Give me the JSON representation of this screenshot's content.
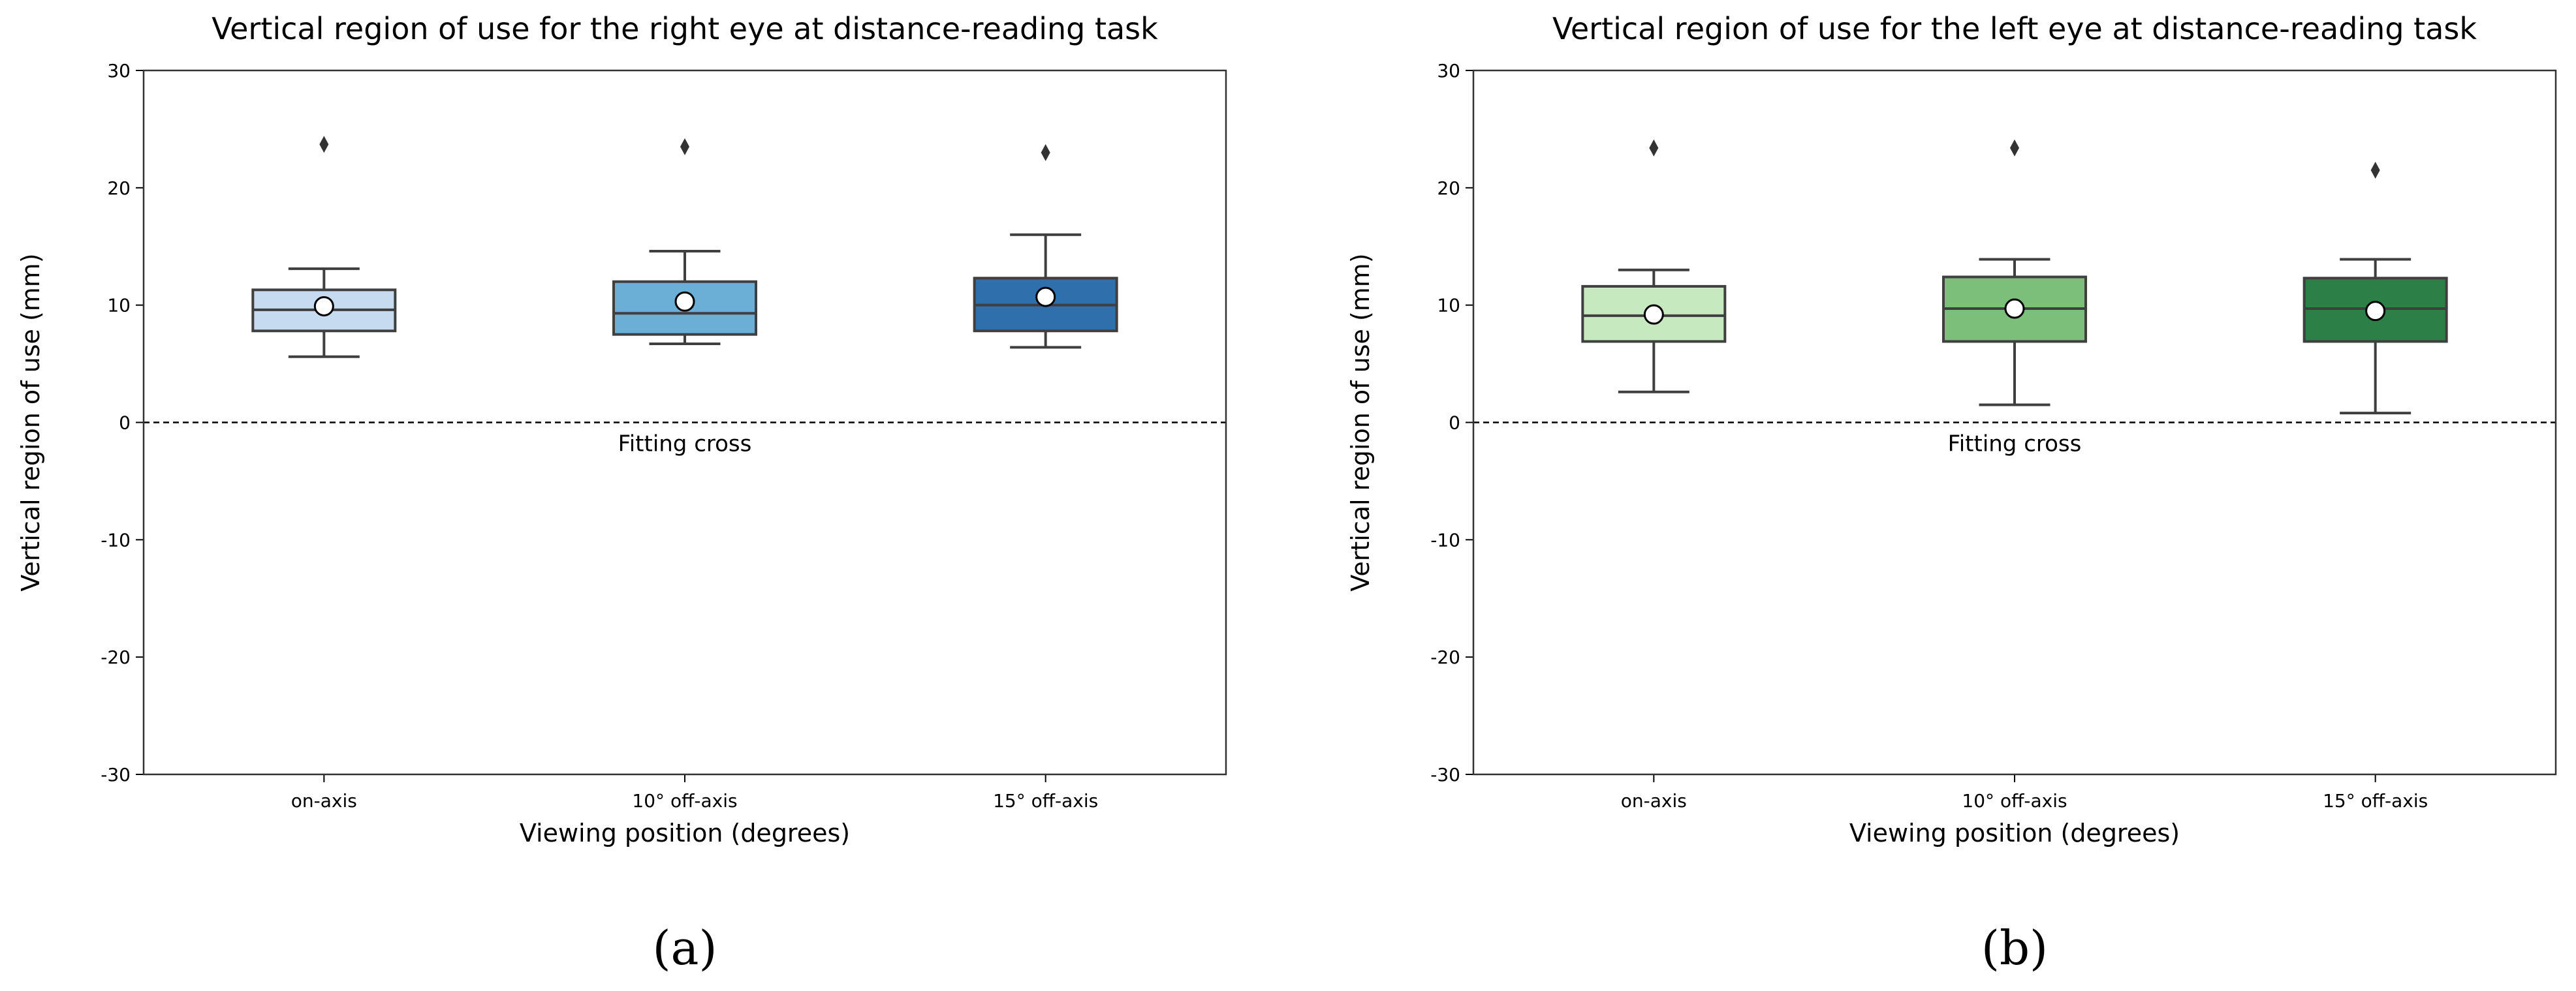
{
  "chart_data": [
    {
      "type": "box",
      "panel_label": "(a)",
      "title": "Vertical region of use for the right eye at distance-reading task",
      "xlabel": "Viewing position (degrees)",
      "ylabel": "Vertical region of use (mm)",
      "ylim": [
        -30,
        30
      ],
      "yticks": [
        30,
        20,
        10,
        0,
        -10,
        -20,
        -30
      ],
      "categories": [
        "on-axis",
        "10° off-axis",
        "15° off-axis"
      ],
      "colors": [
        "#c6dbef",
        "#6baed6",
        "#2e6fac"
      ],
      "boxes": [
        {
          "category": "on-axis",
          "whisker_low": 5.6,
          "q1": 7.8,
          "median": 9.6,
          "q3": 11.3,
          "whisker_high": 13.1,
          "mean": 9.9,
          "outliers": [
            23.7
          ]
        },
        {
          "category": "10° off-axis",
          "whisker_low": 6.7,
          "q1": 7.5,
          "median": 9.3,
          "q3": 12.0,
          "whisker_high": 14.6,
          "mean": 10.3,
          "outliers": [
            23.5
          ]
        },
        {
          "category": "15° off-axis",
          "whisker_low": 6.4,
          "q1": 7.8,
          "median": 10.0,
          "q3": 12.3,
          "whisker_high": 16.0,
          "mean": 10.7,
          "outliers": [
            23.0
          ]
        }
      ],
      "reference_line": {
        "y": 0,
        "label": "Fitting cross"
      }
    },
    {
      "type": "box",
      "panel_label": "(b)",
      "title": "Vertical region of use for the left eye at distance-reading task",
      "xlabel": "Viewing position (degrees)",
      "ylabel": "Vertical region of use (mm)",
      "ylim": [
        -30,
        30
      ],
      "yticks": [
        30,
        20,
        10,
        0,
        -10,
        -20,
        -30
      ],
      "categories": [
        "on-axis",
        "10° off-axis",
        "15° off-axis"
      ],
      "colors": [
        "#c7e9c0",
        "#7cbf7b",
        "#2c7f46"
      ],
      "boxes": [
        {
          "category": "on-axis",
          "whisker_low": 2.6,
          "q1": 6.9,
          "median": 9.1,
          "q3": 11.6,
          "whisker_high": 13.0,
          "mean": 9.2,
          "outliers": [
            23.4
          ]
        },
        {
          "category": "10° off-axis",
          "whisker_low": 1.5,
          "q1": 6.9,
          "median": 9.7,
          "q3": 12.4,
          "whisker_high": 13.9,
          "mean": 9.7,
          "outliers": [
            23.4
          ]
        },
        {
          "category": "15° off-axis",
          "whisker_low": 0.8,
          "q1": 6.9,
          "median": 9.7,
          "q3": 12.3,
          "whisker_high": 13.9,
          "mean": 9.5,
          "outliers": [
            21.5
          ]
        }
      ],
      "reference_line": {
        "y": 0,
        "label": "Fitting cross"
      }
    }
  ]
}
